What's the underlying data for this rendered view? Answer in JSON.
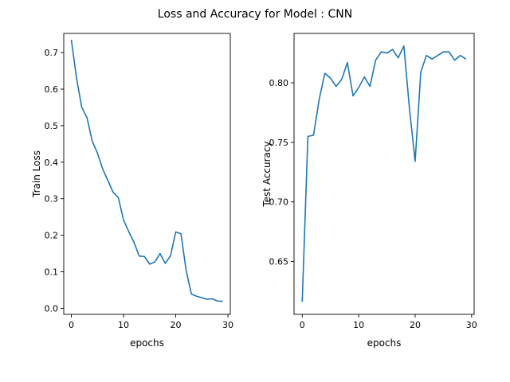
{
  "suptitle": "Loss and Accuracy for Model : CNN",
  "colors": {
    "line": "#1f77b4",
    "axes": "#000000",
    "background": "#ffffff"
  },
  "chart_data": [
    {
      "type": "line",
      "title": "",
      "xlabel": "epochs",
      "ylabel": "Train Loss",
      "xlim": [
        -1.45,
        30.45
      ],
      "ylim": [
        -0.0165,
        0.7525
      ],
      "xticks": [
        0,
        10,
        20,
        30
      ],
      "xtick_labels": [
        "0",
        "10",
        "20",
        "30"
      ],
      "yticks": [
        0.0,
        0.1,
        0.2,
        0.3,
        0.4,
        0.5,
        0.6,
        0.7
      ],
      "ytick_labels": [
        "0.0",
        "0.1",
        "0.2",
        "0.3",
        "0.4",
        "0.5",
        "0.6",
        "0.7"
      ],
      "grid": false,
      "legend": "none",
      "x": [
        0,
        1,
        2,
        3,
        4,
        5,
        6,
        7,
        8,
        9,
        10,
        11,
        12,
        13,
        14,
        15,
        16,
        17,
        18,
        19,
        20,
        21,
        22,
        23,
        24,
        25,
        26,
        27,
        28,
        29
      ],
      "series": [
        {
          "values": [
            0.735,
            0.63,
            0.55,
            0.522,
            0.458,
            0.425,
            0.382,
            0.35,
            0.318,
            0.303,
            0.242,
            0.21,
            0.181,
            0.143,
            0.142,
            0.121,
            0.127,
            0.15,
            0.123,
            0.144,
            0.209,
            0.204,
            0.103,
            0.039,
            0.033,
            0.029,
            0.025,
            0.026,
            0.02,
            0.019
          ]
        }
      ]
    },
    {
      "type": "line",
      "title": "",
      "xlabel": "epochs",
      "ylabel": "Test Accuracy",
      "xlim": [
        -1.45,
        30.45
      ],
      "ylim": [
        0.6055,
        0.8415
      ],
      "xticks": [
        0,
        10,
        20,
        30
      ],
      "xtick_labels": [
        "0",
        "10",
        "20",
        "30"
      ],
      "yticks": [
        0.65,
        0.7,
        0.75,
        0.8
      ],
      "ytick_labels": [
        "0.65",
        "0.70",
        "0.75",
        "0.80"
      ],
      "grid": false,
      "legend": "none",
      "x": [
        0,
        1,
        2,
        3,
        4,
        5,
        6,
        7,
        8,
        9,
        10,
        11,
        12,
        13,
        14,
        15,
        16,
        17,
        18,
        19,
        20,
        21,
        22,
        23,
        24,
        25,
        26,
        27,
        28,
        29
      ],
      "series": [
        {
          "values": [
            0.616,
            0.755,
            0.756,
            0.786,
            0.808,
            0.804,
            0.797,
            0.803,
            0.817,
            0.789,
            0.796,
            0.805,
            0.797,
            0.819,
            0.826,
            0.825,
            0.828,
            0.821,
            0.831,
            0.778,
            0.734,
            0.809,
            0.823,
            0.82,
            0.823,
            0.826,
            0.826,
            0.819,
            0.823,
            0.82
          ]
        }
      ]
    }
  ]
}
